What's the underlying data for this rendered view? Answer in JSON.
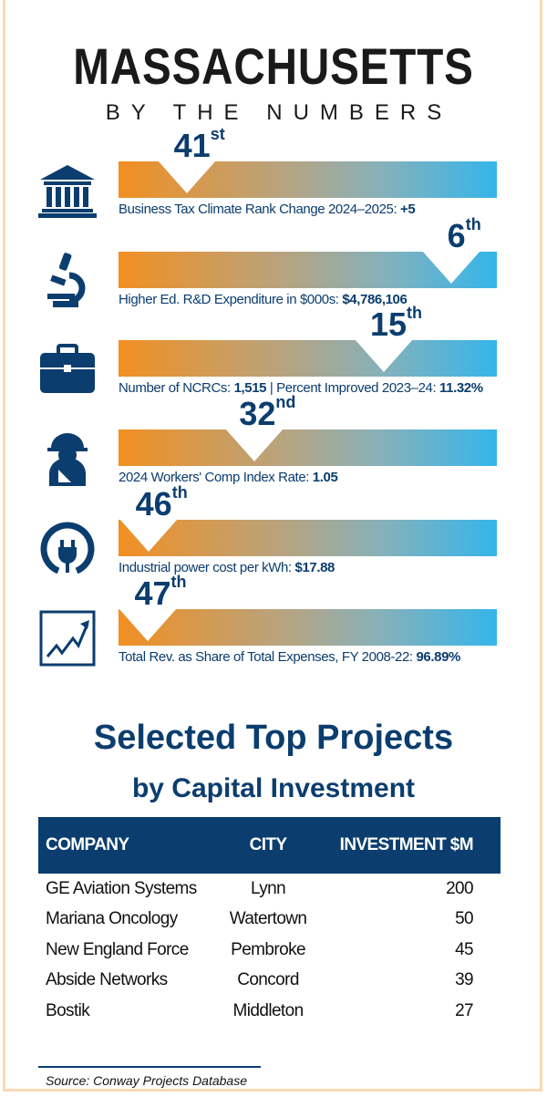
{
  "header": {
    "title": "MASSACHUSETTS",
    "subtitle": "BY THE NUMBERS"
  },
  "metrics": [
    {
      "icon": "government-building-icon",
      "rank": 41,
      "suffix": "st",
      "label": "Business Tax Climate Rank Change 2024–2025: ",
      "value": "+5"
    },
    {
      "icon": "microscope-icon",
      "rank": 6,
      "suffix": "th",
      "label": "Higher Ed. R&D Expenditure in $000s: ",
      "value": "$4,786,106"
    },
    {
      "icon": "briefcase-icon",
      "rank": 15,
      "suffix": "th",
      "label": "Number of NCRCs: ",
      "value": "1,515",
      "label2": " | Percent Improved 2023–24: ",
      "value2": "11.32%"
    },
    {
      "icon": "injured-worker-icon",
      "rank": 32,
      "suffix": "nd",
      "label": "2024 Workers' Comp Index Rate: ",
      "value": "1.05"
    },
    {
      "icon": "power-plug-icon",
      "rank": 46,
      "suffix": "th",
      "label": "Industrial power cost per kWh: ",
      "value": "$17.88"
    },
    {
      "icon": "trend-chart-icon",
      "rank": 47,
      "suffix": "th",
      "label": "Total Rev. as Share of Total Expenses, FY 2008-22: ",
      "value": "96.89%"
    }
  ],
  "projects": {
    "title": "Selected Top Projects",
    "subtitle": "by Capital Investment",
    "columns": [
      "COMPANY",
      "CITY",
      "INVESTMENT $M"
    ],
    "rows": [
      [
        "GE Aviation Systems",
        "Lynn",
        "200"
      ],
      [
        "Mariana Oncology",
        "Watertown",
        "50"
      ],
      [
        "New England Force",
        "Pembroke",
        "45"
      ],
      [
        "Abside Networks",
        "Concord",
        "39"
      ],
      [
        "Bostik",
        "Middleton",
        "27"
      ]
    ],
    "source": "Source: Conway Projects Database"
  },
  "colors": {
    "navy": "#0b3d6e",
    "orange": "#f28f22",
    "blue": "#35b5ea",
    "frame": "#fbd9b3"
  }
}
